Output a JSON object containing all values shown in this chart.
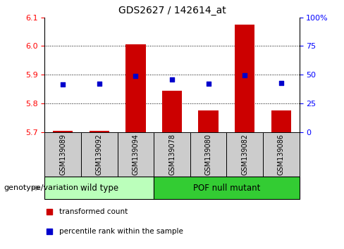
{
  "title": "GDS2627 / 142614_at",
  "samples": [
    "GSM139089",
    "GSM139092",
    "GSM139094",
    "GSM139078",
    "GSM139080",
    "GSM139082",
    "GSM139086"
  ],
  "bar_values": [
    5.705,
    5.705,
    6.005,
    5.845,
    5.775,
    6.075,
    5.775
  ],
  "dot_values": [
    5.865,
    5.868,
    5.895,
    5.884,
    5.868,
    5.898,
    5.872
  ],
  "bar_bottom": 5.7,
  "ylim": [
    5.7,
    6.1
  ],
  "yticks": [
    5.7,
    5.8,
    5.9,
    6.0,
    6.1
  ],
  "right_yticks": [
    0,
    25,
    50,
    75,
    100
  ],
  "right_ylabels": [
    "0",
    "25",
    "50",
    "75",
    "100%"
  ],
  "bar_color": "#cc0000",
  "dot_color": "#0000cc",
  "wild_type_label": "wild type",
  "pof_null_label": "POF null mutant",
  "group_bg_color_wt": "#bbffbb",
  "group_bg_color_pof": "#33cc33",
  "sample_bg_color": "#cccccc",
  "legend_bar_label": "transformed count",
  "legend_dot_label": "percentile rank within the sample",
  "xlabel_left": "genotype/variation",
  "title_fontsize": 10,
  "tick_fontsize": 8,
  "label_fontsize": 8,
  "sample_fontsize": 7,
  "legend_fontsize": 7.5
}
